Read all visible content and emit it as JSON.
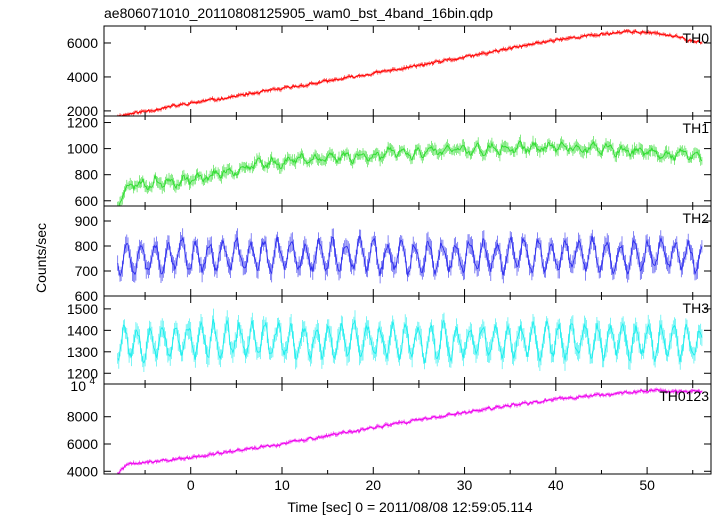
{
  "chart_data": {
    "type": "line",
    "title": "ae806071010_20110808125905_wam0_bst_4band_16bin.qdp",
    "xlabel": "Time [sec] 0 = 2011/08/08 12:59:05.114",
    "ylabel": "Counts/sec",
    "xlim": [
      -9.5,
      57
    ],
    "x_ticks": [
      0,
      10,
      20,
      30,
      40,
      50
    ],
    "x_tick_labels": [
      "0",
      "10",
      "20",
      "30",
      "40",
      "50"
    ],
    "x_range": [
      -8,
      56
    ],
    "grid": false,
    "panels": [
      {
        "name": "TH0",
        "color": "#ff0000",
        "ylim": [
          1700,
          7000
        ],
        "ticks": [
          2000,
          4000,
          6000
        ],
        "tick_labels": [
          "2000",
          "4000",
          "6000"
        ],
        "key_x": [
          -8,
          0,
          10,
          20,
          30,
          40,
          48,
          52,
          56
        ],
        "key_y": [
          1700,
          2450,
          3300,
          4200,
          5150,
          6200,
          6700,
          6500,
          6000
        ],
        "noise": 120,
        "seed": 11,
        "osc_amp": 0,
        "osc_period": 2
      },
      {
        "name": "TH1",
        "color": "#33dd33",
        "ylim": [
          560,
          1250
        ],
        "ticks": [
          600,
          800,
          1000,
          1200
        ],
        "tick_labels": [
          "600",
          "800",
          "1000",
          "1200"
        ],
        "key_x": [
          -8,
          -7,
          -4,
          0,
          6,
          12,
          20,
          30,
          40,
          50,
          56
        ],
        "key_y": [
          560,
          720,
          740,
          760,
          860,
          920,
          950,
          990,
          1010,
          970,
          940
        ],
        "noise": 45,
        "seed": 23,
        "osc_amp": 25,
        "osc_period": 1.6
      },
      {
        "name": "TH2",
        "color": "#3333ee",
        "ylim": [
          600,
          960
        ],
        "ticks": [
          600,
          700,
          800,
          900
        ],
        "tick_labels": [
          "600",
          "700",
          "800",
          "900"
        ],
        "key_x": [
          -8,
          56
        ],
        "key_y": [
          760,
          760
        ],
        "noise": 35,
        "seed": 37,
        "osc_amp": 55,
        "osc_period": 1.5
      },
      {
        "name": "TH3",
        "color": "#22eeee",
        "ylim": [
          1150,
          1560
        ],
        "ticks": [
          1200,
          1300,
          1400,
          1500
        ],
        "tick_labels": [
          "1200",
          "1300",
          "1400",
          "1500"
        ],
        "key_x": [
          -8,
          56
        ],
        "key_y": [
          1350,
          1350
        ],
        "noise": 45,
        "seed": 53,
        "osc_amp": 70,
        "osc_period": 1.4
      },
      {
        "name": "TH0123",
        "color": "#ee00ee",
        "ylim": [
          3800,
          10400
        ],
        "ticks": [
          4000,
          6000,
          8000
        ],
        "tick_labels": [
          "4000",
          "6000",
          "8000"
        ],
        "top_label": "10",
        "top_label_exp": "4",
        "key_x": [
          -8,
          -7,
          0,
          10,
          20,
          30,
          40,
          50,
          56
        ],
        "key_y": [
          3800,
          4500,
          5000,
          6000,
          7200,
          8300,
          9300,
          9900,
          9800
        ],
        "noise": 150,
        "seed": 71,
        "osc_amp": 0,
        "osc_period": 2
      }
    ]
  }
}
